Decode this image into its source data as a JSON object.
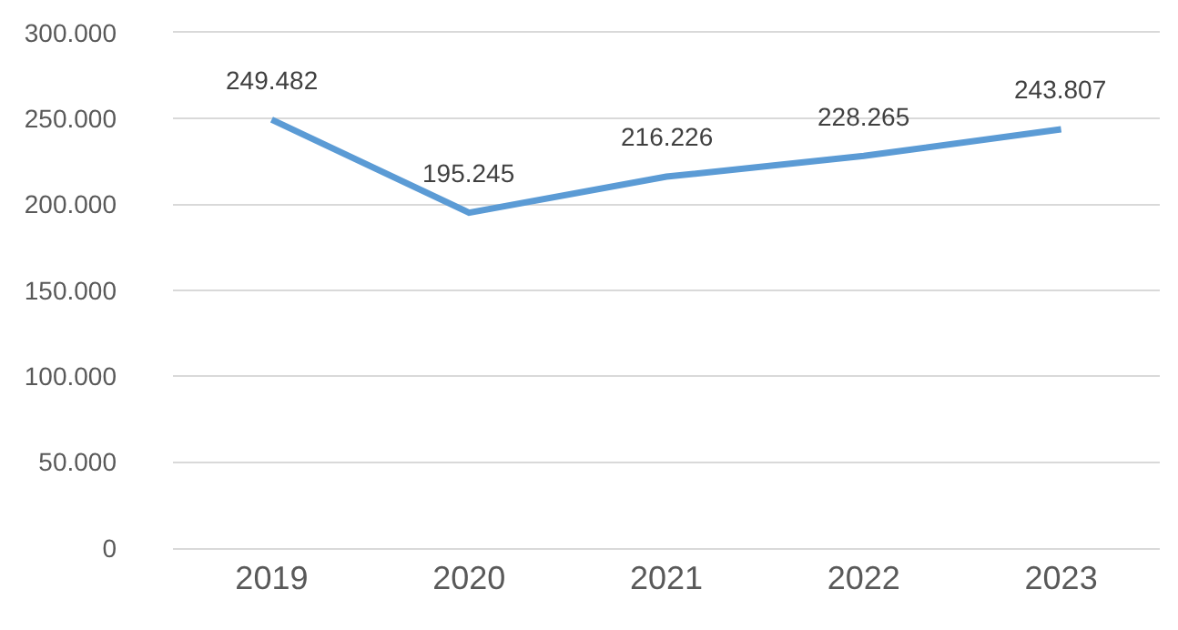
{
  "chart_data": {
    "type": "line",
    "categories": [
      "2019",
      "2020",
      "2021",
      "2022",
      "2023"
    ],
    "series": [
      {
        "color": "#5b9bd5",
        "values": [
          249482,
          195245,
          216226,
          228265,
          243807
        ],
        "value_labels": [
          "249.482",
          "195.245",
          "216.226",
          "228.265",
          "243.807"
        ]
      }
    ],
    "ylim": [
      0,
      300000
    ],
    "yticks": [
      {
        "value": 0,
        "label": "0"
      },
      {
        "value": 50000,
        "label": "50.000"
      },
      {
        "value": 100000,
        "label": "100.000"
      },
      {
        "value": 150000,
        "label": "150.000"
      },
      {
        "value": 200000,
        "label": "200.000"
      },
      {
        "value": 250000,
        "label": "250.000"
      },
      {
        "value": 300000,
        "label": "300.000"
      }
    ],
    "grid": "y",
    "marker": "none",
    "line_style": "solid"
  }
}
